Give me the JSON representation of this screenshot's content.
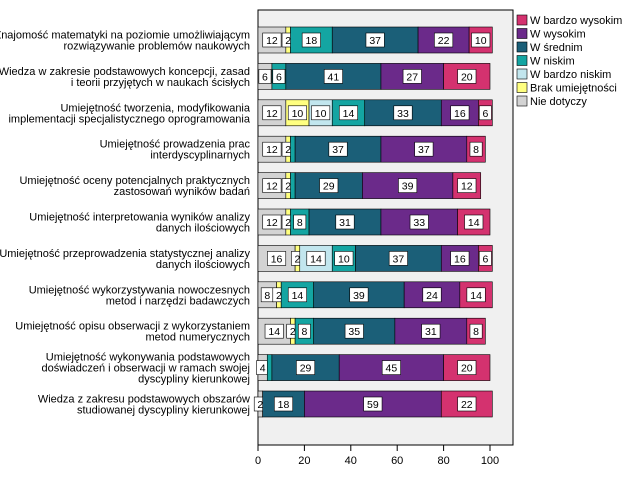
{
  "chart_data": {
    "type": "bar",
    "orientation": "horizontal",
    "stacked": true,
    "xlim": [
      0,
      100
    ],
    "x_ticks": [
      "0",
      "20",
      "40",
      "60",
      "80",
      "100"
    ],
    "legend_position": "top-right",
    "categories": [
      [
        "Znajomość matematyki na poziomie umożliwiającym",
        "rozwiązywanie problemów naukowych"
      ],
      [
        "Wiedza w zakresie podstawowych koncepcji, zasad",
        "i teorii przyjętych w naukach ścisłych"
      ],
      [
        "Umiejętność tworzenia, modyfikowania",
        "implementacji specjalistycznego oprogramowania"
      ],
      [
        "Umiejętność prowadzenia prac",
        "interdyscyplinarnych"
      ],
      [
        "Umiejętność oceny potencjalnych praktycznych",
        "zastosowań wyników badań"
      ],
      [
        "Umiejętność interpretowania wyników analizy",
        "danych ilościowych"
      ],
      [
        "Umiejętność przeprowadzenia statystycznej analizy",
        "danych ilościowych"
      ],
      [
        "Umiejętność wykorzystywania nowoczesnych",
        "metod i narzędzi badawczych"
      ],
      [
        "Umiejętność opisu obserwacji z wykorzystaniem",
        "metod numerycznych"
      ],
      [
        "Umiejętność wykonywania podstawowych",
        "doświadczeń i obserwacji w ramach swojej",
        "dyscypliny kierunkowej"
      ],
      [
        "Wiedza z zakresu podstawowych obszarów",
        "studiowanej dyscypliny kierunkowej"
      ]
    ],
    "series": [
      {
        "name": "Nie dotyczy",
        "color": "#d3d3d3",
        "values": [
          12,
          6,
          12,
          12,
          12,
          12,
          16,
          8,
          14,
          4,
          2
        ]
      },
      {
        "name": "Brak umiejętności",
        "color": "#ffff80",
        "values": [
          2,
          0,
          10,
          2,
          2,
          2,
          2,
          2,
          2,
          0,
          0
        ]
      },
      {
        "name": "W bardzo niskim",
        "color": "#c2e6ee",
        "values": [
          0,
          0,
          10,
          0,
          0,
          0,
          14,
          0,
          0,
          0,
          0
        ]
      },
      {
        "name": "W niskim",
        "color": "#14a5a2",
        "values": [
          18,
          6,
          14,
          2,
          2,
          8,
          10,
          14,
          8,
          2,
          0
        ]
      },
      {
        "name": "W średnim",
        "color": "#1b5f78",
        "values": [
          37,
          41,
          33,
          37,
          29,
          31,
          37,
          39,
          35,
          29,
          18
        ]
      },
      {
        "name": "W wysokim",
        "color": "#6b2a8a",
        "values": [
          22,
          27,
          16,
          37,
          39,
          33,
          16,
          24,
          31,
          45,
          59
        ]
      },
      {
        "name": "W bardzo wysokim",
        "color": "#d4326f",
        "values": [
          10,
          20,
          6,
          8,
          12,
          14,
          6,
          14,
          8,
          20,
          22
        ]
      }
    ],
    "data_labels": [
      [
        "12",
        "2",
        "",
        "18",
        "37",
        "22",
        "10"
      ],
      [
        "6",
        "",
        "",
        "6",
        "41",
        "27",
        "20"
      ],
      [
        "12",
        "10",
        "10",
        "14",
        "33",
        "16",
        "6"
      ],
      [
        "12",
        "2",
        "",
        "",
        "37",
        "37",
        "8"
      ],
      [
        "12",
        "2",
        "",
        "",
        "29",
        "39",
        "12"
      ],
      [
        "12",
        "2",
        "",
        "8",
        "31",
        "33",
        "14"
      ],
      [
        "16",
        "2",
        "14",
        "10",
        "37",
        "16",
        "6"
      ],
      [
        "8",
        "2",
        "",
        "14",
        "39",
        "24",
        "14"
      ],
      [
        "14",
        "2",
        "",
        "8",
        "35",
        "31",
        "8"
      ],
      [
        "4",
        "",
        "",
        "",
        "29",
        "45",
        "20"
      ],
      [
        "2",
        "",
        "",
        "",
        "18",
        "59",
        "22"
      ]
    ],
    "legend_order": [
      "W bardzo wysokim",
      "W wysokim",
      "W średnim",
      "W niskim",
      "W bardzo niskim",
      "Brak umiejętności",
      "Nie dotyczy"
    ]
  }
}
